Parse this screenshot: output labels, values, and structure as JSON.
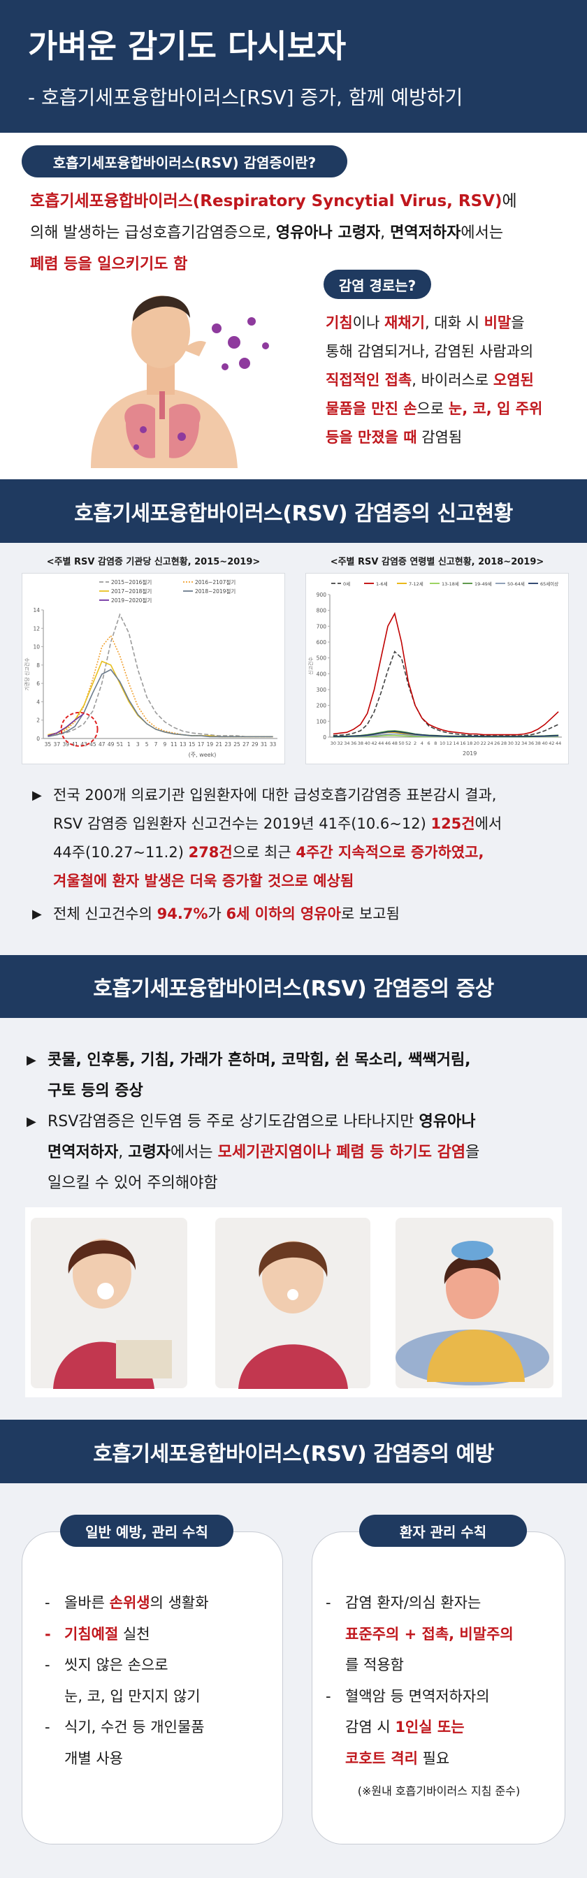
{
  "header": {
    "title": "가벼운 감기도 다시보자",
    "subtitle": "- 호흡기세포융합바이러스[RSV] 증가, 함께 예방하기"
  },
  "intro": {
    "heading": "호흡기세포융합바이러스(RSV) 감염증이란?",
    "lines": [
      [
        {
          "text": "호흡기세포융합바이러스(Respiratory Syncytial Virus, RSV)",
          "style": "red"
        },
        {
          "text": "에",
          "style": "plain"
        }
      ],
      [
        {
          "text": "의해 발생하는 급성호흡기감염증으로, ",
          "style": "plain"
        },
        {
          "text": "영유아나 고령자",
          "style": "bold"
        },
        {
          "text": ", ",
          "style": "plain"
        },
        {
          "text": "면역저하자",
          "style": "bold"
        },
        {
          "text": "에서는",
          "style": "plain"
        }
      ],
      [
        {
          "text": "폐렴 등을 일으키기도 함",
          "style": "red"
        }
      ]
    ]
  },
  "route": {
    "heading": "감염 경로는?",
    "lines": [
      [
        {
          "text": "기침",
          "style": "red"
        },
        {
          "text": "이나 ",
          "style": "plain"
        },
        {
          "text": "재채기",
          "style": "red"
        },
        {
          "text": ", 대화 시 ",
          "style": "plain"
        },
        {
          "text": "비말",
          "style": "red"
        },
        {
          "text": "을",
          "style": "plain"
        }
      ],
      [
        {
          "text": "통해 감염되거나, 감염된 사람과의",
          "style": "plain"
        }
      ],
      [
        {
          "text": "직접적인 접촉",
          "style": "red"
        },
        {
          "text": ", 바이러스로 ",
          "style": "plain"
        },
        {
          "text": "오염된",
          "style": "red"
        }
      ],
      [
        {
          "text": "물품을 만진 손",
          "style": "red"
        },
        {
          "text": "으로 ",
          "style": "plain"
        },
        {
          "text": "눈, 코, 입 주위",
          "style": "red"
        }
      ],
      [
        {
          "text": "등을 만졌을 때",
          "style": "red"
        },
        {
          "text": " 감염됨",
          "style": "plain"
        }
      ]
    ]
  },
  "report": {
    "heading": "호흡기세포융합바이러스(RSV) 감염증의 신고현황",
    "charts": [
      {
        "type": "line",
        "title": "<주별 RSV 감염증 기관당 신고현황, 2015~2019>",
        "xlabel": "(주, week)",
        "ylabel": "기관당 신고건수",
        "categories": [
          "35",
          "37",
          "39",
          "41",
          "43",
          "45",
          "47",
          "49",
          "51",
          "1",
          "3",
          "5",
          "7",
          "9",
          "11",
          "13",
          "15",
          "17",
          "19",
          "21",
          "23",
          "25",
          "27",
          "29",
          "31",
          "33"
        ],
        "ylim": [
          0,
          14
        ],
        "yticks": [
          0,
          2,
          4,
          6,
          8,
          10,
          12,
          14
        ],
        "grid": false,
        "series": [
          {
            "name": "2015~2016절기",
            "color": "#9a9a9a",
            "dash": "dashed",
            "values": [
              0.3,
              0.4,
              0.6,
              1.0,
              1.6,
              3.0,
              6.0,
              10.5,
              13.5,
              11.5,
              7.5,
              4.5,
              2.8,
              1.8,
              1.2,
              0.8,
              0.6,
              0.5,
              0.4,
              0.3,
              0.3,
              0.3,
              0.2,
              0.2,
              0.2,
              0.2
            ]
          },
          {
            "name": "2016~2107절기",
            "color": "#f0a030",
            "dash": "dotted",
            "values": [
              0.3,
              0.5,
              0.9,
              1.8,
              3.5,
              6.5,
              10.0,
              11.2,
              9.0,
              6.0,
              3.5,
              2.0,
              1.2,
              0.8,
              0.6,
              0.4,
              0.3,
              0.3,
              0.3,
              0.2,
              0.2,
              0.2,
              0.2,
              0.2,
              0.2,
              0.2
            ]
          },
          {
            "name": "2017~2018절기",
            "color": "#e8c020",
            "dash": "solid",
            "values": [
              0.4,
              0.6,
              1.1,
              2.0,
              3.6,
              6.0,
              8.4,
              8.0,
              6.0,
              4.0,
              2.5,
              1.6,
              1.0,
              0.7,
              0.5,
              0.4,
              0.3,
              0.3,
              0.3,
              0.2,
              0.2,
              0.2,
              0.2,
              0.2,
              0.2,
              0.2
            ]
          },
          {
            "name": "2018~2019절기",
            "color": "#6b7b8c",
            "dash": "solid",
            "values": [
              0.2,
              0.4,
              0.7,
              1.3,
              2.8,
              5.0,
              7.0,
              7.5,
              6.2,
              4.2,
              2.6,
              1.6,
              1.0,
              0.7,
              0.5,
              0.4,
              0.3,
              0.3,
              0.2,
              0.2,
              0.2,
              0.2,
              0.2,
              0.2,
              0.2,
              0.2
            ]
          },
          {
            "name": "2019~2020절기",
            "color": "#7030a0",
            "dash": "solid",
            "values": [
              0.3,
              0.6,
              1.2,
              2.0,
              2.7,
              null,
              null,
              null,
              null,
              null,
              null,
              null,
              null,
              null,
              null,
              null,
              null,
              null,
              null,
              null,
              null,
              null,
              null,
              null,
              null,
              null
            ]
          }
        ]
      },
      {
        "type": "line",
        "title": "<주별 RSV 감염증 연령별 신고현황, 2018~2019>",
        "ylabel": "신고건수",
        "annotation": "2019",
        "categories": [
          "30",
          "32",
          "34",
          "36",
          "38",
          "40",
          "42",
          "44",
          "46",
          "48",
          "50",
          "52",
          "2",
          "4",
          "6",
          "8",
          "10",
          "12",
          "14",
          "16",
          "18",
          "20",
          "22",
          "24",
          "26",
          "28",
          "30",
          "32",
          "34",
          "36",
          "38",
          "40",
          "42",
          "44"
        ],
        "ylim": [
          0,
          900
        ],
        "yticks": [
          0,
          100,
          200,
          300,
          400,
          500,
          600,
          700,
          800,
          900
        ],
        "grid": false,
        "series": [
          {
            "name": "0세",
            "color": "#404040",
            "dash": "dashed",
            "values": [
              10,
              12,
              15,
              25,
              40,
              80,
              160,
              280,
              420,
              540,
              500,
              330,
              200,
              120,
              70,
              50,
              35,
              25,
              20,
              15,
              12,
              10,
              10,
              8,
              8,
              8,
              8,
              8,
              10,
              15,
              25,
              40,
              60,
              80
            ]
          },
          {
            "name": "1-6세",
            "color": "#c00000",
            "dash": "solid",
            "values": [
              20,
              25,
              30,
              50,
              80,
              150,
              300,
              500,
              700,
              780,
              600,
              350,
              200,
              120,
              80,
              60,
              45,
              35,
              30,
              25,
              20,
              20,
              15,
              15,
              15,
              15,
              15,
              15,
              20,
              30,
              50,
              80,
              120,
              160
            ]
          },
          {
            "name": "7-12세",
            "color": "#e8b000",
            "dash": "solid",
            "values": [
              2,
              2,
              3,
              4,
              6,
              10,
              18,
              25,
              30,
              30,
              25,
              18,
              12,
              8,
              6,
              5,
              4,
              3,
              3,
              3,
              2,
              2,
              2,
              2,
              2,
              2,
              2,
              2,
              2,
              3,
              4,
              5,
              6,
              8
            ]
          },
          {
            "name": "13-18세",
            "color": "#92d050",
            "dash": "solid",
            "values": [
              1,
              1,
              1,
              2,
              2,
              3,
              5,
              8,
              10,
              10,
              8,
              6,
              4,
              3,
              2,
              2,
              2,
              1,
              1,
              1,
              1,
              1,
              1,
              1,
              1,
              1,
              1,
              1,
              1,
              1,
              2,
              2,
              3,
              3
            ]
          },
          {
            "name": "19-49세",
            "color": "#4e8f3a",
            "dash": "solid",
            "values": [
              5,
              5,
              6,
              8,
              10,
              15,
              22,
              30,
              38,
              40,
              35,
              28,
              20,
              15,
              12,
              10,
              8,
              7,
              6,
              6,
              5,
              5,
              5,
              5,
              5,
              5,
              5,
              5,
              5,
              6,
              7,
              8,
              10,
              12
            ]
          },
          {
            "name": "50-64세",
            "color": "#8497b0",
            "dash": "solid",
            "values": [
              2,
              2,
              3,
              4,
              5,
              7,
              10,
              14,
              18,
              20,
              18,
              14,
              10,
              8,
              6,
              5,
              4,
              3,
              3,
              3,
              3,
              2,
              2,
              2,
              2,
              2,
              2,
              2,
              2,
              3,
              3,
              4,
              5,
              6
            ]
          },
          {
            "name": "65세이상",
            "color": "#1f3864",
            "dash": "solid",
            "values": [
              3,
              3,
              4,
              6,
              8,
              12,
              18,
              25,
              32,
              35,
              30,
              24,
              18,
              14,
              10,
              8,
              6,
              5,
              5,
              4,
              4,
              4,
              3,
              3,
              3,
              3,
              3,
              3,
              3,
              4,
              5,
              6,
              8,
              10
            ]
          }
        ]
      }
    ],
    "bullets": [
      {
        "marker": "▶",
        "lines": [
          [
            {
              "text": "전국 200개 의료기관 입원환자에 대한 급성호흡기감염증 표본감시 결과,",
              "style": "plain"
            }
          ],
          [
            {
              "text": "RSV 감염증 입원환자 신고건수는 2019년 41주(10.6~12) ",
              "style": "plain"
            },
            {
              "text": "125건",
              "style": "red"
            },
            {
              "text": "에서",
              "style": "plain"
            }
          ],
          [
            {
              "text": "44주(10.27~11.2) ",
              "style": "plain"
            },
            {
              "text": "278건",
              "style": "red"
            },
            {
              "text": "으로 최근 ",
              "style": "plain"
            },
            {
              "text": "4주간 지속적으로 증가하였고,",
              "style": "red"
            }
          ],
          [
            {
              "text": "겨울철에 환자 발생은 더욱 증가할 것으로 예상됨",
              "style": "red"
            }
          ]
        ]
      },
      {
        "marker": "▶",
        "lines": [
          [
            {
              "text": "전체 신고건수의 ",
              "style": "plain"
            },
            {
              "text": "94.7%",
              "style": "red"
            },
            {
              "text": "가 ",
              "style": "plain"
            },
            {
              "text": "6세 이하의 영유아",
              "style": "red"
            },
            {
              "text": "로 보고됨",
              "style": "plain"
            }
          ]
        ]
      }
    ]
  },
  "symptoms": {
    "heading": "호흡기세포융합바이러스(RSV) 감염증의 증상",
    "bullets": [
      {
        "marker": "▶",
        "lines": [
          [
            {
              "text": "콧물, 인후통, 기침, 가래가 흔하며, 코막힘, 쉰 목소리, 쌕쌕거림,",
              "style": "bold"
            }
          ],
          [
            {
              "text": "구토 등의 증상",
              "style": "bold"
            }
          ]
        ]
      },
      {
        "marker": "▶",
        "lines": [
          [
            {
              "text": "RSV감염증은 인두염 등 주로 상기도감염으로 나타나지만 ",
              "style": "plain"
            },
            {
              "text": "영유아나",
              "style": "bold"
            }
          ],
          [
            {
              "text": "면역저하자",
              "style": "bold"
            },
            {
              "text": ", ",
              "style": "plain"
            },
            {
              "text": "고령자",
              "style": "bold"
            },
            {
              "text": "에서는 ",
              "style": "plain"
            },
            {
              "text": "모세기관지염이나 폐렴 등 하기도 감염",
              "style": "red"
            },
            {
              "text": "을",
              "style": "plain"
            }
          ],
          [
            {
              "text": "일으킬 수 있어 주의해야함",
              "style": "plain"
            }
          ]
        ]
      }
    ]
  },
  "prevention": {
    "heading": "호흡기세포융합바이러스(RSV) 감염증의 예방",
    "cards": [
      {
        "heading": "일반 예방, 관리 수칙",
        "items": [
          {
            "marker": "-",
            "marker_style": "plain",
            "lines": [
              [
                {
                  "text": "올바른 ",
                  "style": "plain"
                },
                {
                  "text": "손위생",
                  "style": "red"
                },
                {
                  "text": "의 생활화",
                  "style": "plain"
                }
              ]
            ]
          },
          {
            "marker": "-",
            "marker_style": "red",
            "lines": [
              [
                {
                  "text": "기침예절",
                  "style": "red"
                },
                {
                  "text": " 실천",
                  "style": "plain"
                }
              ]
            ]
          },
          {
            "marker": "-",
            "marker_style": "plain",
            "lines": [
              [
                {
                  "text": "씻지 않은 손으로",
                  "style": "plain"
                }
              ],
              [
                {
                  "text": "눈, 코, 입 만지지 않기",
                  "style": "plain"
                }
              ]
            ]
          },
          {
            "marker": "-",
            "marker_style": "plain",
            "lines": [
              [
                {
                  "text": "식기, 수건 등 개인물품",
                  "style": "plain"
                }
              ],
              [
                {
                  "text": "개별 사용",
                  "style": "plain"
                }
              ]
            ]
          }
        ]
      },
      {
        "heading": "환자 관리 수칙",
        "items": [
          {
            "marker": "-",
            "marker_style": "plain",
            "lines": [
              [
                {
                  "text": "감염 환자/의심 환자는",
                  "style": "plain"
                }
              ],
              [
                {
                  "text": "표준주의 + 접촉, 비말주의",
                  "style": "red"
                }
              ],
              [
                {
                  "text": "를 적용함",
                  "style": "plain"
                }
              ]
            ]
          },
          {
            "marker": "-",
            "marker_style": "plain",
            "lines": [
              [
                {
                  "text": "혈액암 등 면역저하자의",
                  "style": "plain"
                }
              ],
              [
                {
                  "text": "감염 시 ",
                  "style": "plain"
                },
                {
                  "text": "1인실 또는",
                  "style": "red"
                }
              ],
              [
                {
                  "text": "코호트 격리",
                  "style": "red"
                },
                {
                  "text": " 필요",
                  "style": "plain"
                }
              ]
            ]
          }
        ],
        "note": "(※원내 호흡기바이러스 지침 준수)"
      }
    ]
  }
}
